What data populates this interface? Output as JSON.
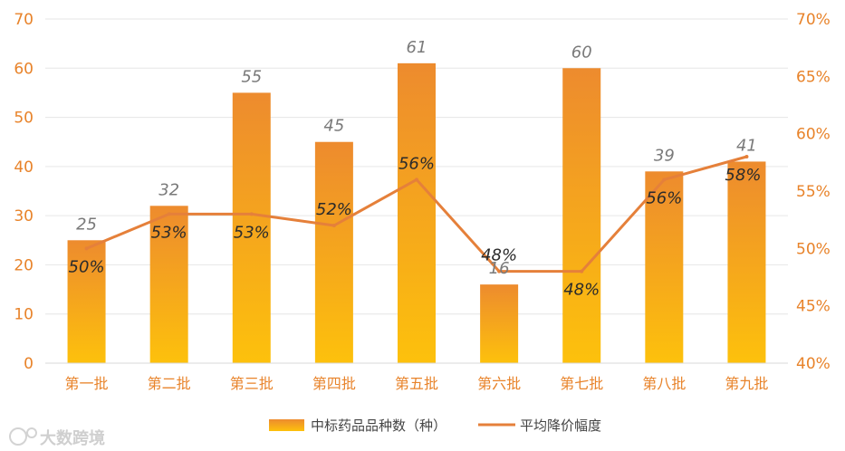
{
  "chart_data": {
    "type": "bar",
    "categories": [
      "第一批",
      "第二批",
      "第三批",
      "第四批",
      "第五批",
      "第六批",
      "第七批",
      "第八批",
      "第九批"
    ],
    "series": [
      {
        "name": "中标药品品种数（种）",
        "type": "bar",
        "axis": "left",
        "values": [
          25,
          32,
          55,
          45,
          61,
          16,
          60,
          39,
          41
        ],
        "labels": [
          "25",
          "32",
          "55",
          "45",
          "61",
          "16",
          "60",
          "39",
          "41"
        ]
      },
      {
        "name": "平均降价幅度",
        "type": "line",
        "axis": "right",
        "values": [
          50,
          53,
          53,
          52,
          56,
          48,
          48,
          56,
          58
        ],
        "labels": [
          "50%",
          "53%",
          "53%",
          "52%",
          "56%",
          "48%",
          "48%",
          "56%",
          "58%"
        ]
      }
    ],
    "ylim": [
      0,
      70
    ],
    "yticks": [
      "0",
      "10",
      "20",
      "30",
      "40",
      "50",
      "60",
      "70"
    ],
    "y2lim": [
      40,
      70
    ],
    "y2ticks": [
      "40%",
      "45%",
      "50%",
      "55%",
      "60%",
      "65%",
      "70%"
    ],
    "grid": true,
    "legend_position": "bottom",
    "colors": {
      "bar_top": "#ED8B2E",
      "bar_bottom": "#FDC10C",
      "line": "#E5803A",
      "axis_text": "#E8832A"
    }
  },
  "watermark": {
    "text": "大数跨境"
  }
}
